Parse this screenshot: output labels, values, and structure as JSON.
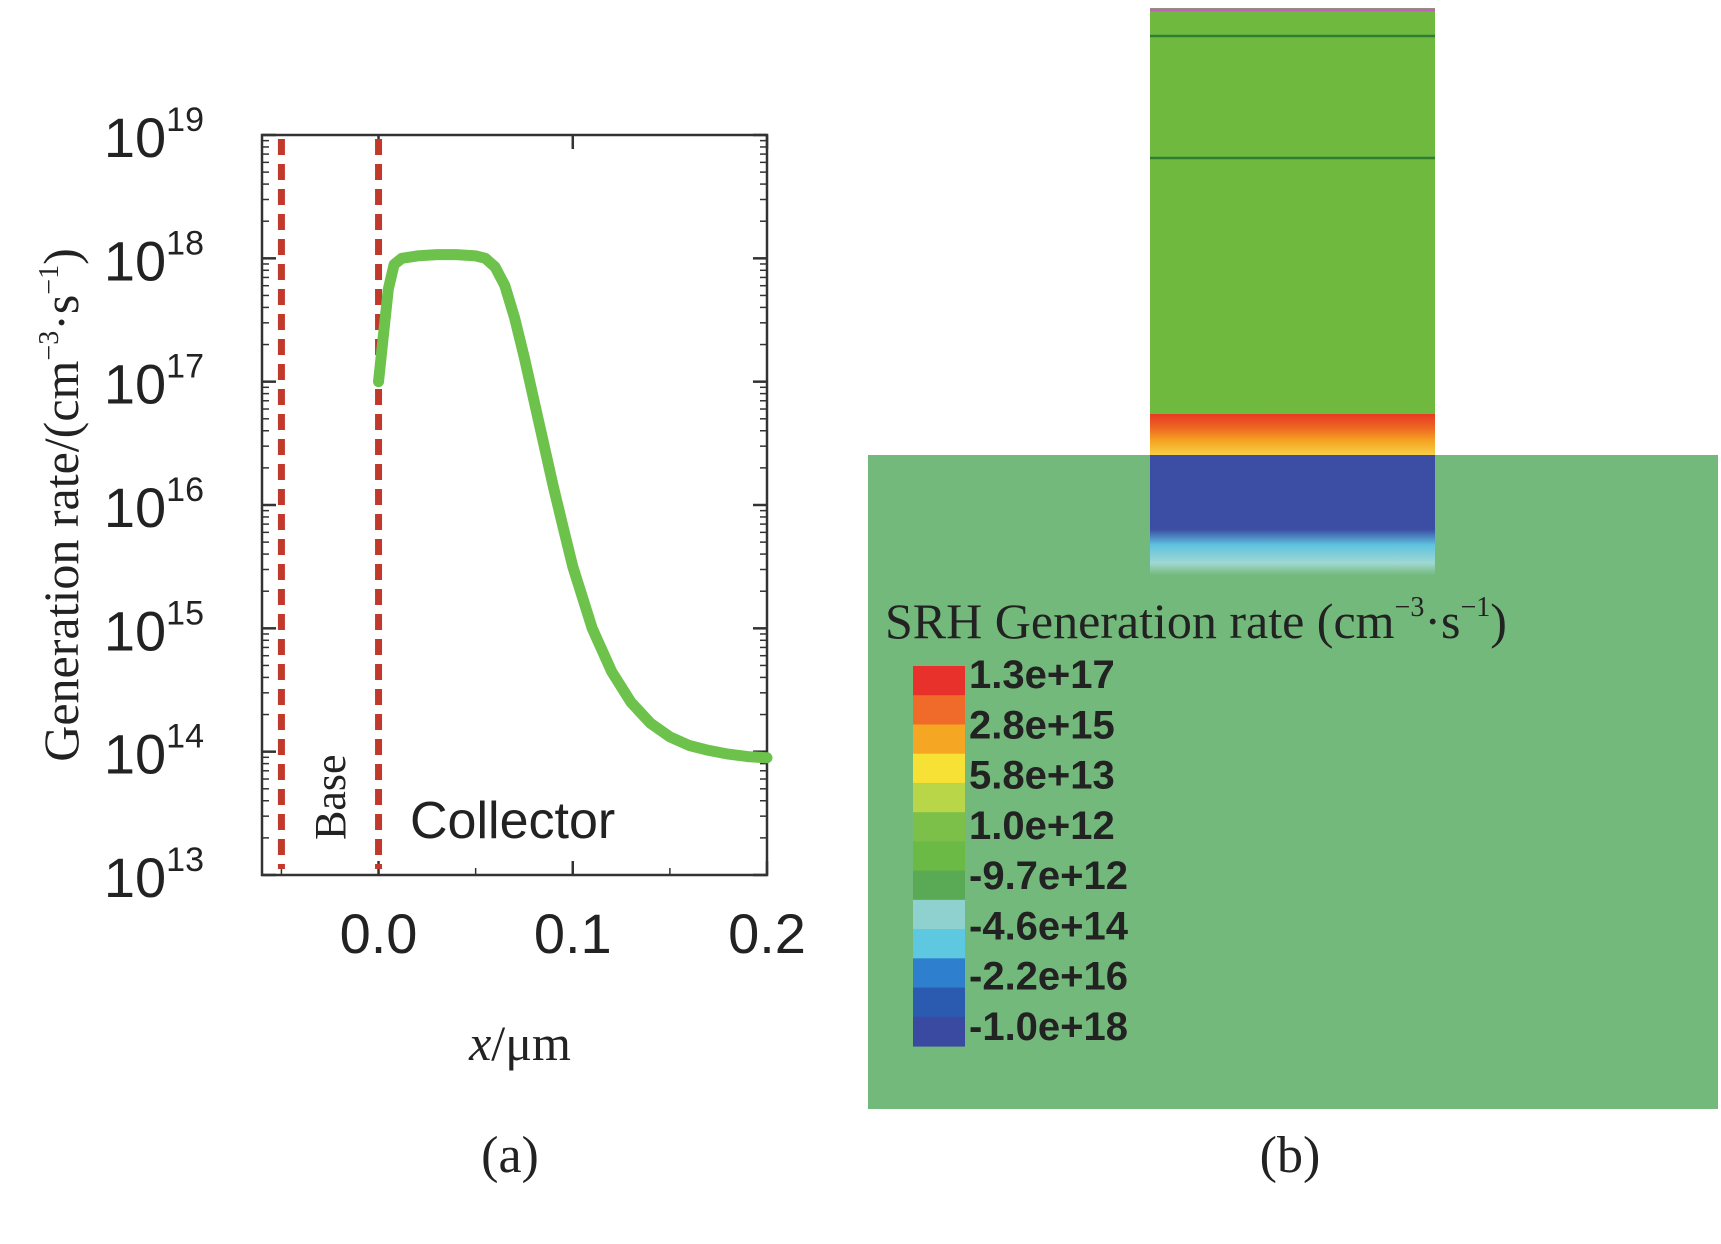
{
  "chart_data": [
    {
      "panel_label": "(a)",
      "type": "line",
      "xlabel_var": "x",
      "xlabel_unit": "/μm",
      "ylabel_text": "Generation rate/(cm",
      "ylabel_sup1": "−3",
      "ylabel_mid": "·s",
      "ylabel_sup2": "−1",
      "ylabel_close": ")",
      "xlim": [
        -0.06,
        0.2
      ],
      "ylim_exp": [
        13,
        19
      ],
      "y_scale": "log",
      "x_ticks": [
        {
          "value": 0.0,
          "label": "0.0"
        },
        {
          "value": 0.1,
          "label": "0.1"
        },
        {
          "value": 0.2,
          "label": "0.2"
        }
      ],
      "y_ticks": [
        {
          "exp": 13,
          "base": "10",
          "sup": "13"
        },
        {
          "exp": 14,
          "base": "10",
          "sup": "14"
        },
        {
          "exp": 15,
          "base": "10",
          "sup": "15"
        },
        {
          "exp": 16,
          "base": "10",
          "sup": "16"
        },
        {
          "exp": 17,
          "base": "10",
          "sup": "17"
        },
        {
          "exp": 18,
          "base": "10",
          "sup": "18"
        },
        {
          "exp": 19,
          "base": "10",
          "sup": "19"
        }
      ],
      "boundaries": [
        -0.05,
        0.0
      ],
      "region_labels": {
        "base": "Base",
        "collector": "Collector"
      },
      "series": [
        {
          "color": "#6cc24a",
          "x": [
            0.0,
            0.002,
            0.005,
            0.008,
            0.012,
            0.02,
            0.03,
            0.04,
            0.05,
            0.055,
            0.06,
            0.065,
            0.07,
            0.075,
            0.08,
            0.085,
            0.09,
            0.095,
            0.1,
            0.11,
            0.12,
            0.13,
            0.14,
            0.15,
            0.16,
            0.17,
            0.18,
            0.19,
            0.2
          ],
          "y_log10": [
            17.0,
            17.3,
            17.75,
            17.95,
            18.0,
            18.02,
            18.03,
            18.03,
            18.02,
            18.0,
            17.93,
            17.78,
            17.52,
            17.2,
            16.85,
            16.5,
            16.15,
            15.82,
            15.5,
            15.0,
            14.65,
            14.4,
            14.23,
            14.12,
            14.05,
            14.01,
            13.98,
            13.96,
            13.95
          ]
        }
      ],
      "colors": {
        "boundary": "#c0392b",
        "axis": "#333333",
        "curve": "#6cc24a"
      }
    },
    {
      "panel_label": "(b)",
      "type": "heatmap",
      "title_text": "SRH Generation rate (cm",
      "title_sup1": "−3",
      "title_mid": "·s",
      "title_sup2": "−1",
      "title_close": ")",
      "legend_values": [
        "1.3e+17",
        "2.8e+15",
        "5.8e+13",
        "1.0e+12",
        "-9.7e+12",
        "-4.6e+14",
        "-2.2e+16",
        "-1.0e+18"
      ],
      "colorbar": [
        "#e8312a",
        "#f06a2a",
        "#f5a623",
        "#f7e135",
        "#b9d649",
        "#7cc04a",
        "#6bba45",
        "#5aaa55",
        "#8fd1cf",
        "#5ec8e0",
        "#2f7fcf",
        "#2a5bb0",
        "#3a4aa0"
      ],
      "colors": {
        "background": "#74b97c",
        "column": "#6fb93e",
        "region_blue": "#3b4ea3"
      }
    }
  ]
}
